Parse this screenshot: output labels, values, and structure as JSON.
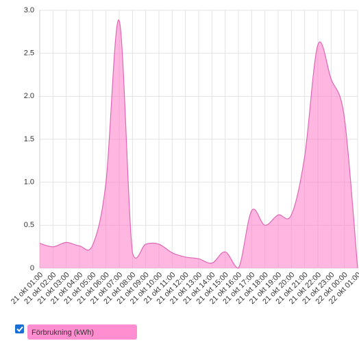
{
  "chart_data": {
    "type": "area",
    "categories": [
      "21 okt 01:00",
      "21 okt 02:00",
      "21 okt 03:00",
      "21 okt 04:00",
      "21 okt 05:00",
      "21 okt 06:00",
      "21 okt 07:00",
      "21 okt 08:00",
      "21 okt 09:00",
      "21 okt 10:00",
      "21 okt 11:00",
      "21 okt 12:00",
      "21 okt 13:00",
      "21 okt 14:00",
      "21 okt 15:00",
      "21 okt 16:00",
      "21 okt 17:00",
      "21 okt 18:00",
      "21 okt 19:00",
      "21 okt 20:00",
      "21 okt 21:00",
      "21 okt 22:00",
      "21 okt 23:00",
      "22 okt 00:00",
      "22 okt 01:00"
    ],
    "series": [
      {
        "name": "Förbrukning (kWh)",
        "color": "#ff7ac8",
        "values": [
          0.29,
          0.25,
          0.3,
          0.26,
          0.27,
          1.0,
          2.88,
          0.18,
          0.28,
          0.28,
          0.18,
          0.13,
          0.11,
          0.06,
          0.19,
          0,
          0.67,
          0.5,
          0.62,
          0.62,
          1.3,
          2.6,
          2.2,
          1.75,
          0
        ]
      }
    ],
    "ylim": [
      0,
      3
    ],
    "yticks": [
      0,
      0.5,
      {
        "value": 1,
        "label": "1.0"
      },
      1.5,
      {
        "value": 2,
        "label": "2.0"
      },
      2.5,
      {
        "value": 3,
        "label": "3.0"
      }
    ],
    "grid": true
  }
}
